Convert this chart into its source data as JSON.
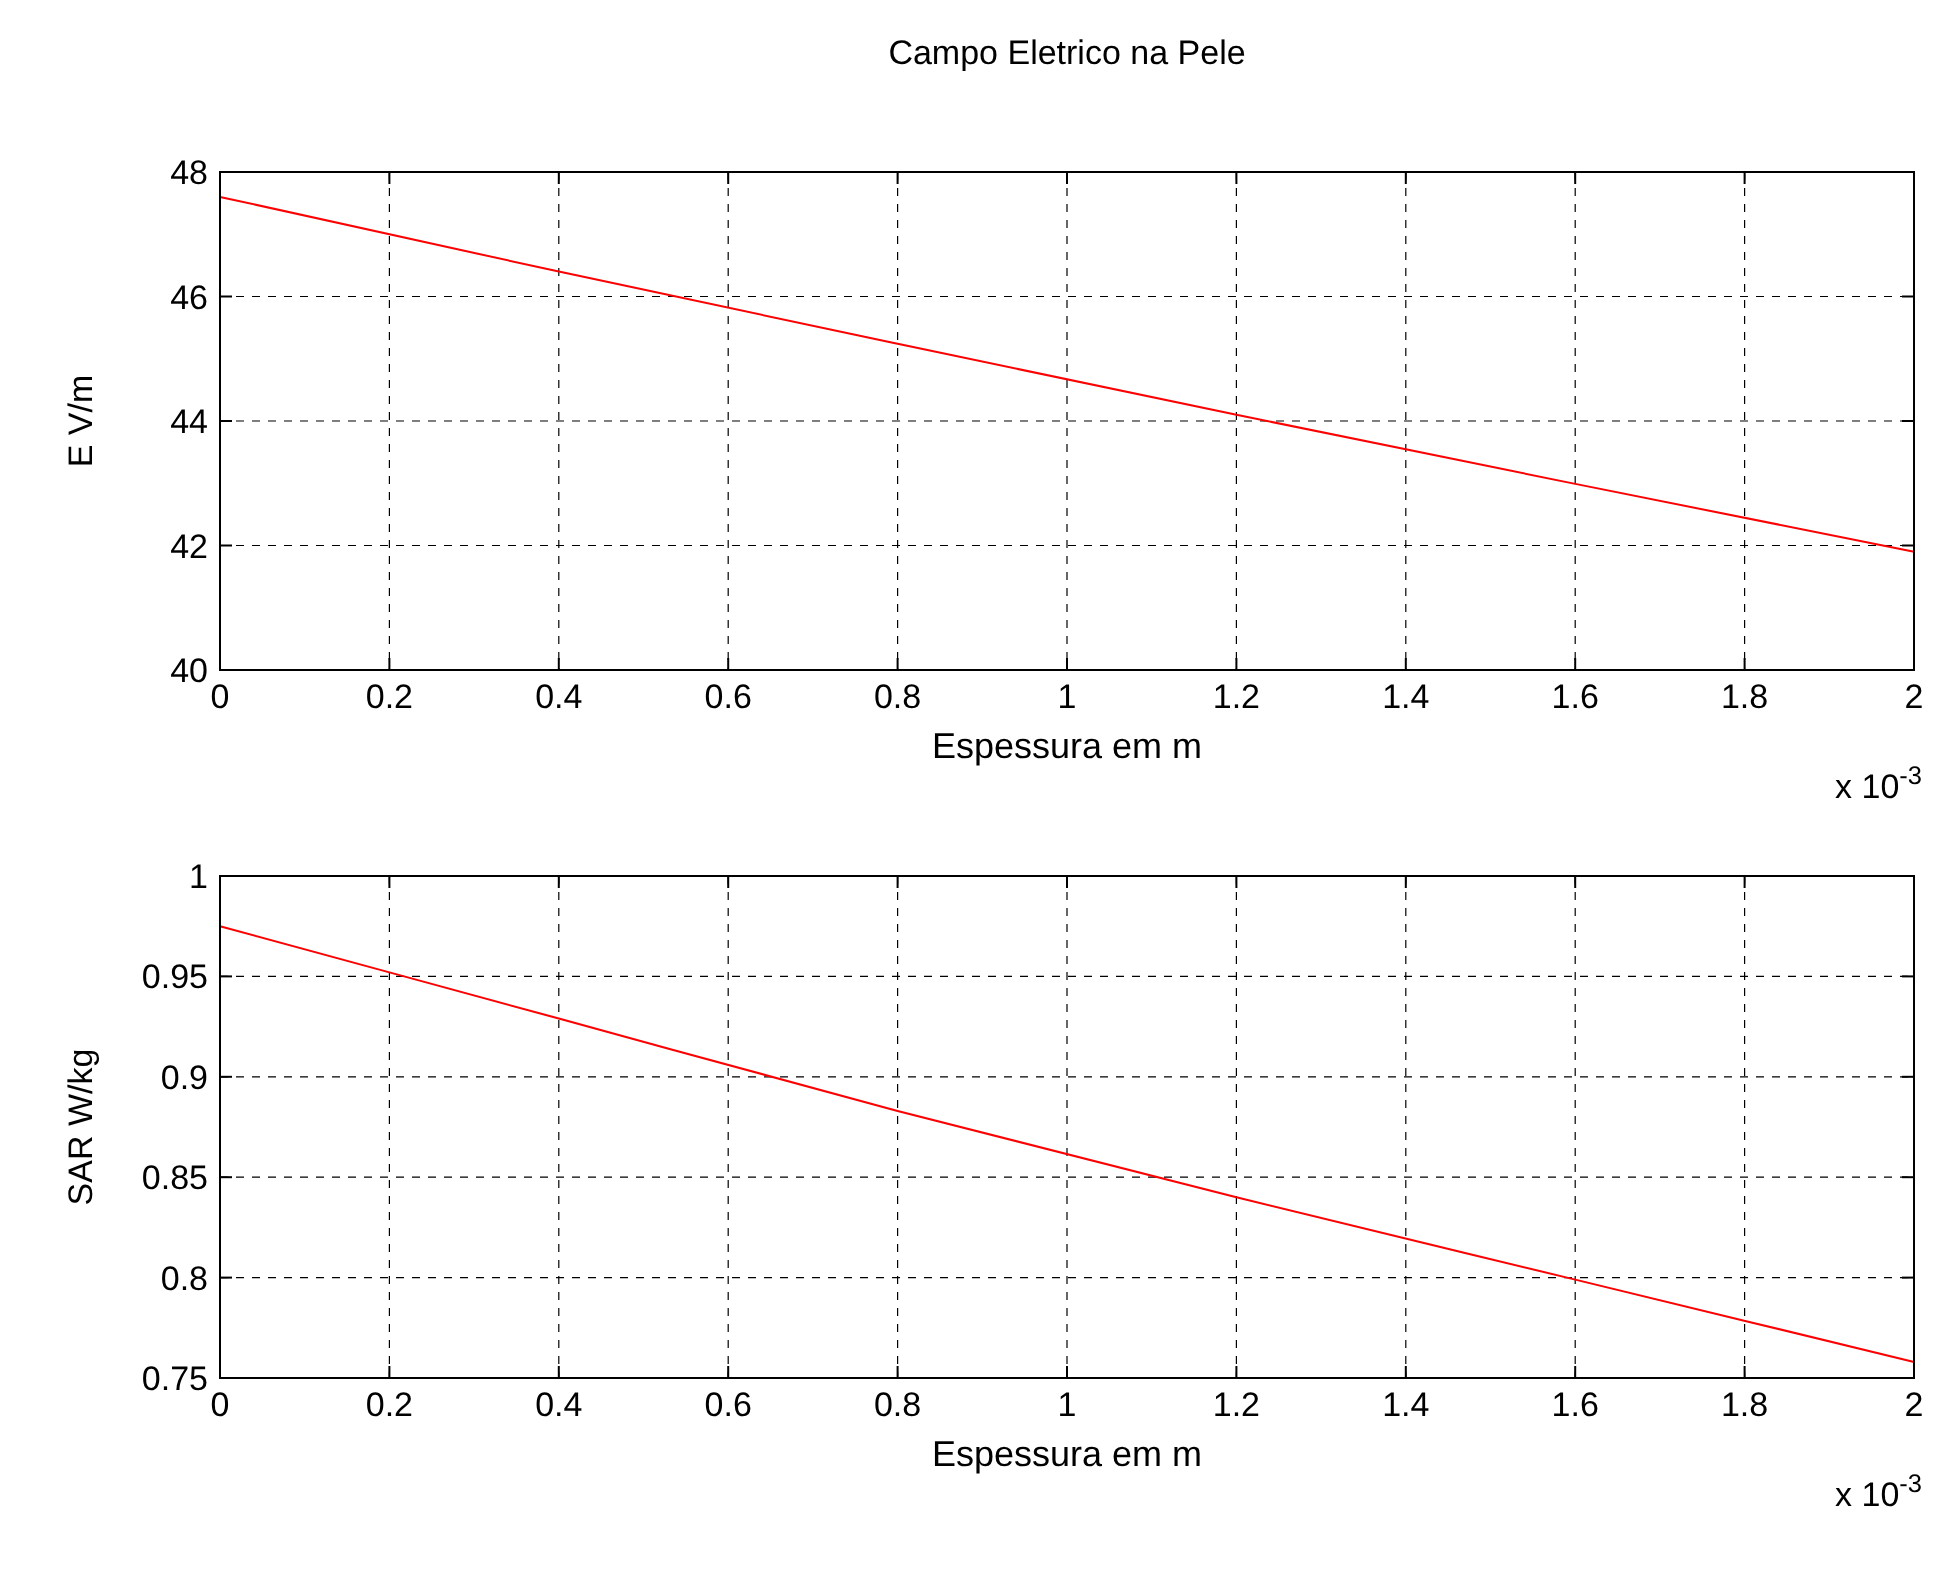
{
  "chart_data": [
    {
      "type": "line",
      "title": "Campo Eletrico na Pele",
      "xlabel": "Espessura em m",
      "ylabel": "E V/m",
      "annotations": [
        "x 10$^{-3}$"
      ],
      "x": [
        0,
        0.4,
        0.8,
        1.2,
        1.6,
        2
      ],
      "series": [
        {
          "color": "#ff0000",
          "values": [
            47.6,
            46.4,
            45.24,
            44.1,
            42.99,
            41.9
          ]
        }
      ],
      "xlim": [
        0,
        2
      ],
      "xticks": [
        0,
        0.2,
        0.4,
        0.6,
        0.8,
        1,
        1.2,
        1.4,
        1.6,
        1.8,
        2
      ],
      "ylim": [
        40,
        48
      ],
      "yticks": [
        40,
        42,
        44,
        46,
        48
      ],
      "grid": true,
      "line_style": "solid"
    },
    {
      "type": "line",
      "xlabel": "Espessura em m",
      "ylabel": "SAR W/kg",
      "annotations": [
        "x 10$^{-3}$"
      ],
      "x": [
        0,
        0.4,
        0.8,
        1.2,
        1.6,
        2
      ],
      "series": [
        {
          "color": "#ff0000",
          "values": [
            0.975,
            0.929,
            0.883,
            0.84,
            0.799,
            0.758
          ]
        }
      ],
      "xlim": [
        0,
        2
      ],
      "xticks": [
        0,
        0.2,
        0.4,
        0.6,
        0.8,
        1,
        1.2,
        1.4,
        1.6,
        1.8,
        2
      ],
      "ylim": [
        0.75,
        1
      ],
      "yticks": [
        0.75,
        0.8,
        0.85,
        0.9,
        0.95,
        1
      ],
      "grid": true,
      "line_style": "solid"
    }
  ]
}
